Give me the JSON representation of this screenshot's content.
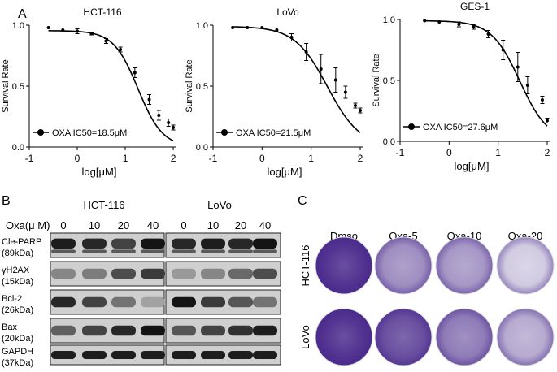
{
  "panels": {
    "A": {
      "letter": "A",
      "charts": [
        {
          "type": "line",
          "title": "HCT-116",
          "xlabel": "log[μM]",
          "ylabel": "Survival Rate",
          "xlim": [
            -1,
            2.05
          ],
          "ylim": [
            0,
            1.0
          ],
          "xticks": [
            -1,
            0,
            1,
            2
          ],
          "yticks": [
            0,
            0.5,
            1.0
          ],
          "ytick_labels": [
            "0.0",
            "0.5",
            "1.0"
          ],
          "legend": "OXA  IC50=18.5μM",
          "ic50_log": 1.267,
          "hill": 1.7,
          "top": 0.955,
          "x": [
            -0.6,
            -0.3,
            0.0,
            0.3,
            0.6,
            0.9,
            1.2,
            1.5,
            1.7,
            1.9,
            2.0
          ],
          "y": [
            0.98,
            0.96,
            0.95,
            0.93,
            0.87,
            0.8,
            0.61,
            0.39,
            0.26,
            0.2,
            0.16
          ],
          "err": [
            0.0,
            0.0,
            0.02,
            0.01,
            0.02,
            0.02,
            0.04,
            0.04,
            0.04,
            0.03,
            0.02
          ]
        },
        {
          "type": "line",
          "title": "LoVo",
          "xlabel": "log[μM]",
          "ylabel": "Survival Rate",
          "xlim": [
            -1,
            2.05
          ],
          "ylim": [
            0,
            1.0
          ],
          "xticks": [
            -1,
            0,
            1,
            2
          ],
          "yticks": [
            0,
            0.5,
            1.0
          ],
          "ytick_labels": [
            "0.0",
            "0.5",
            "1.0"
          ],
          "legend": "OXA  IC50=21.5μM",
          "ic50_log": 1.332,
          "hill": 1.3,
          "top": 0.99,
          "x": [
            -0.6,
            -0.3,
            0.0,
            0.3,
            0.6,
            0.9,
            1.2,
            1.5,
            1.7,
            1.9,
            2.0
          ],
          "y": [
            0.98,
            0.98,
            0.98,
            0.96,
            0.9,
            0.78,
            0.64,
            0.55,
            0.45,
            0.34,
            0.3
          ],
          "err": [
            0.0,
            0.0,
            0.0,
            0.0,
            0.03,
            0.07,
            0.12,
            0.1,
            0.05,
            0.02,
            0.02
          ]
        },
        {
          "type": "line",
          "title": "GES-1",
          "xlabel": "log[μM]",
          "ylabel": "Survival Rate",
          "xlim": [
            -1,
            2.05
          ],
          "ylim": [
            0,
            1.0
          ],
          "xticks": [
            -1,
            0,
            1,
            2
          ],
          "yticks": [
            0,
            0.5,
            1.0
          ],
          "ytick_labels": [
            "0.0",
            "0.5",
            "1.0"
          ],
          "legend": "OXA  IC50=27.6μM",
          "ic50_log": 1.441,
          "hill": 1.5,
          "top": 0.99,
          "x": [
            -0.5,
            -0.2,
            0.2,
            0.5,
            0.8,
            1.1,
            1.4,
            1.6,
            1.9,
            2.0
          ],
          "y": [
            0.99,
            0.98,
            0.96,
            0.94,
            0.88,
            0.75,
            0.61,
            0.46,
            0.34,
            0.17
          ],
          "err": [
            0.0,
            0.0,
            0.02,
            0.02,
            0.03,
            0.08,
            0.12,
            0.07,
            0.03,
            0.02
          ]
        }
      ]
    },
    "B": {
      "letter": "B",
      "cell_lines": [
        "HCT-116",
        "LoVo"
      ],
      "oxa_label": "Oxa(μ M)",
      "doses": [
        "0",
        "10",
        "20",
        "40",
        "0",
        "10",
        "20",
        "40"
      ],
      "rows": [
        {
          "name": "Cle-PARP",
          "kda": "(89kDa)",
          "intensity": [
            0.9,
            0.85,
            0.7,
            0.95,
            0.85,
            0.9,
            0.85,
            0.95
          ],
          "double": true
        },
        {
          "name": "γH2AX",
          "kda": "(15kDa)",
          "intensity": [
            0.35,
            0.4,
            0.65,
            0.75,
            0.25,
            0.35,
            0.5,
            0.65
          ],
          "double": false
        },
        {
          "name": "Bcl-2",
          "kda": "(26kDa)",
          "intensity": [
            0.85,
            0.7,
            0.45,
            0.2,
            0.95,
            0.75,
            0.6,
            0.45
          ],
          "double": false
        },
        {
          "name": "Bax",
          "kda": "(20kDa)",
          "intensity": [
            0.55,
            0.7,
            0.85,
            0.95,
            0.6,
            0.7,
            0.8,
            0.9
          ],
          "double": false
        },
        {
          "name": "GAPDH",
          "kda": "(37kDa)",
          "intensity": [
            0.9,
            0.9,
            0.9,
            0.9,
            0.9,
            0.9,
            0.9,
            0.9
          ],
          "double": false
        }
      ]
    },
    "C": {
      "letter": "C",
      "columns": [
        "Dmso",
        "Oxa-5",
        "Oxa-10",
        "Oxa-20"
      ],
      "rows": [
        {
          "label": "HCT-116",
          "density": [
            0.95,
            0.45,
            0.4,
            0.12
          ]
        },
        {
          "label": "LoVo",
          "density": [
            0.95,
            0.8,
            0.55,
            0.3
          ]
        }
      ],
      "stain_color": "#4a2a8c"
    }
  }
}
